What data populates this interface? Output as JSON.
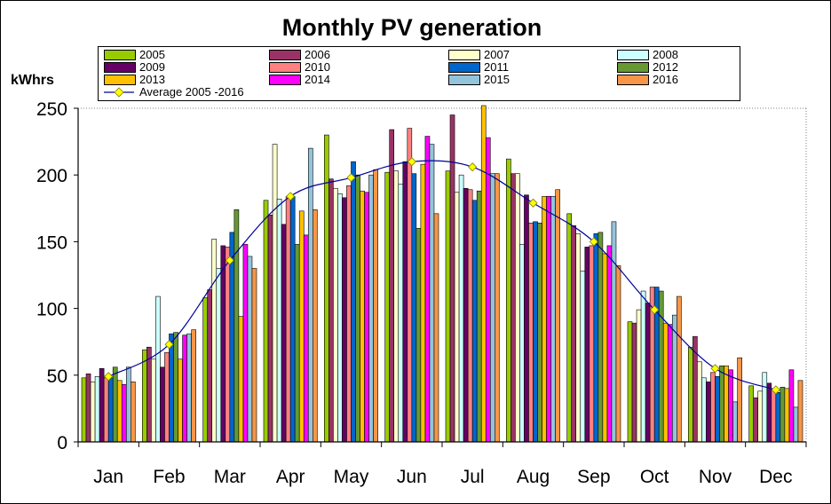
{
  "chart_data": {
    "type": "bar",
    "title": "Monthly PV generation",
    "ylabel": "kWhrs",
    "xlabel": "",
    "ylim": [
      0,
      250
    ],
    "yticks": [
      0,
      50,
      100,
      150,
      200,
      250
    ],
    "grid": false,
    "legend_position": "top",
    "categories": [
      "Jan",
      "Feb",
      "Mar",
      "Apr",
      "May",
      "Jun",
      "Jul",
      "Aug",
      "Sep",
      "Oct",
      "Nov",
      "Dec"
    ],
    "series": [
      {
        "name": "2005",
        "color": "#99CC00",
        "values": [
          48,
          69,
          108,
          181,
          230,
          202,
          203,
          212,
          171,
          90,
          71,
          42
        ]
      },
      {
        "name": "2006",
        "color": "#993366",
        "values": [
          51,
          71,
          114,
          170,
          197,
          234,
          245,
          201,
          162,
          89,
          79,
          33
        ]
      },
      {
        "name": "2007",
        "color": "#FFFFCC",
        "values": [
          45,
          62,
          152,
          223,
          190,
          203,
          187,
          201,
          156,
          99,
          60,
          38
        ]
      },
      {
        "name": "2008",
        "color": "#CCFFFF",
        "values": [
          49,
          109,
          130,
          182,
          186,
          193,
          200,
          148,
          128,
          113,
          48,
          52
        ]
      },
      {
        "name": "2009",
        "color": "#660066",
        "values": [
          55,
          56,
          147,
          163,
          183,
          210,
          190,
          185,
          146,
          104,
          45,
          44
        ]
      },
      {
        "name": "2010",
        "color": "#FF8080",
        "values": [
          48,
          67,
          146,
          184,
          192,
          235,
          189,
          164,
          147,
          116,
          52,
          40
        ]
      },
      {
        "name": "2011",
        "color": "#0066CC",
        "values": [
          48,
          81,
          157,
          184,
          210,
          201,
          181,
          165,
          156,
          116,
          49,
          37
        ]
      },
      {
        "name": "2012",
        "color": "#669933",
        "values": [
          56,
          82,
          174,
          148,
          200,
          160,
          188,
          164,
          157,
          113,
          57,
          41
        ]
      },
      {
        "name": "2013",
        "color": "#FFC000",
        "values": [
          46,
          62,
          94,
          173,
          188,
          208,
          252,
          184,
          141,
          89,
          57,
          40
        ]
      },
      {
        "name": "2014",
        "color": "#FF00FF",
        "values": [
          43,
          80,
          148,
          155,
          187,
          229,
          228,
          184,
          147,
          88,
          54,
          54
        ]
      },
      {
        "name": "2015",
        "color": "#93C4DC",
        "values": [
          56,
          81,
          139,
          220,
          200,
          223,
          201,
          184,
          165,
          95,
          30,
          26
        ]
      },
      {
        "name": "2016",
        "color": "#F79646",
        "values": [
          45,
          84,
          130,
          174,
          204,
          171,
          201,
          189,
          132,
          109,
          63,
          46
        ]
      }
    ],
    "average": {
      "name": "Average 2005 -2016",
      "line_color": "#000099",
      "marker_color": "#FFFF00",
      "values": [
        49,
        73,
        136,
        184,
        198,
        210,
        206,
        179,
        150,
        99,
        55,
        39
      ]
    }
  }
}
